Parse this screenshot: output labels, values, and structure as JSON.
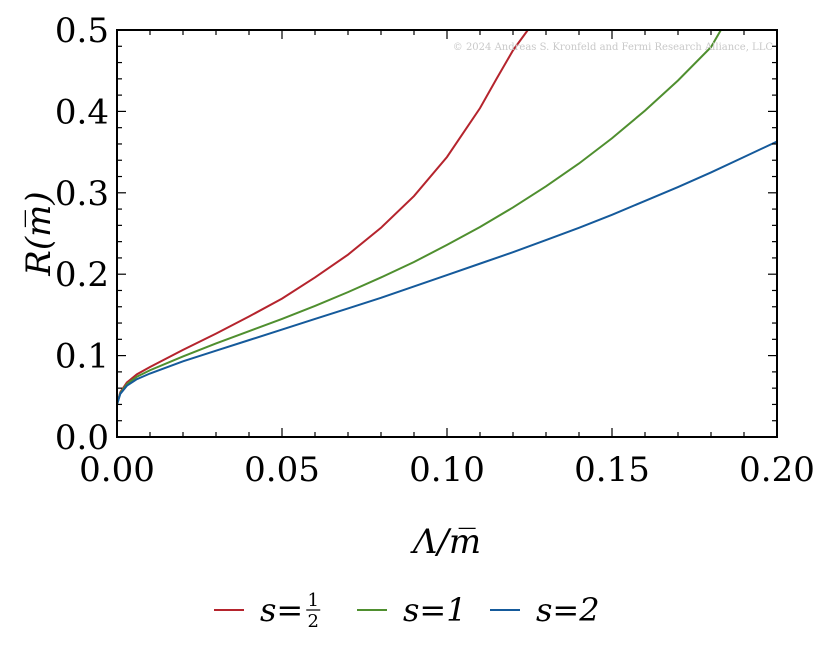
{
  "chart_data": {
    "type": "line",
    "title": "",
    "xlabel": "Λ/m̅",
    "ylabel": "R(m̅)",
    "xlim": [
      0,
      0.2
    ],
    "ylim": [
      0,
      0.5
    ],
    "x_ticks": [
      "0.00",
      "0.05",
      "0.10",
      "0.15",
      "0.20"
    ],
    "y_ticks": [
      "0.0",
      "0.1",
      "0.2",
      "0.3",
      "0.4",
      "0.5"
    ],
    "grid": false,
    "legend_position": "bottom",
    "watermark": "© 2024 Andreas S. Kronfeld and Fermi Research Alliance, LLC",
    "series": [
      {
        "name": "s=1/2",
        "color": "#b5242d",
        "x": [
          0,
          0.001,
          0.003,
          0.006,
          0.01,
          0.02,
          0.03,
          0.04,
          0.05,
          0.06,
          0.07,
          0.08,
          0.09,
          0.1,
          0.11,
          0.115,
          0.12,
          0.1245
        ],
        "y": [
          0.04,
          0.055,
          0.067,
          0.077,
          0.086,
          0.107,
          0.127,
          0.148,
          0.17,
          0.196,
          0.224,
          0.257,
          0.296,
          0.344,
          0.404,
          0.44,
          0.475,
          0.5
        ]
      },
      {
        "name": "s=1",
        "color": "#4f8f2f",
        "x": [
          0,
          0.001,
          0.003,
          0.006,
          0.01,
          0.02,
          0.03,
          0.04,
          0.05,
          0.06,
          0.07,
          0.08,
          0.09,
          0.1,
          0.11,
          0.12,
          0.13,
          0.14,
          0.15,
          0.16,
          0.17,
          0.18,
          0.183
        ],
        "y": [
          0.04,
          0.054,
          0.065,
          0.074,
          0.082,
          0.099,
          0.115,
          0.13,
          0.145,
          0.161,
          0.178,
          0.196,
          0.215,
          0.236,
          0.258,
          0.282,
          0.308,
          0.336,
          0.367,
          0.401,
          0.438,
          0.479,
          0.5
        ]
      },
      {
        "name": "s=2",
        "color": "#155a9b",
        "x": [
          0,
          0.001,
          0.003,
          0.006,
          0.01,
          0.02,
          0.03,
          0.04,
          0.05,
          0.06,
          0.07,
          0.08,
          0.09,
          0.1,
          0.11,
          0.12,
          0.13,
          0.14,
          0.15,
          0.16,
          0.17,
          0.18,
          0.19,
          0.2
        ],
        "y": [
          0.04,
          0.053,
          0.063,
          0.071,
          0.078,
          0.093,
          0.106,
          0.119,
          0.132,
          0.145,
          0.158,
          0.171,
          0.185,
          0.199,
          0.213,
          0.227,
          0.242,
          0.257,
          0.273,
          0.29,
          0.307,
          0.325,
          0.344,
          0.363
        ]
      }
    ],
    "legend_labels": [
      {
        "prefix": "s=",
        "num": "1",
        "den": "2"
      },
      {
        "prefix": "s=1",
        "num": "",
        "den": ""
      },
      {
        "prefix": "s=2",
        "num": "",
        "den": ""
      }
    ]
  }
}
